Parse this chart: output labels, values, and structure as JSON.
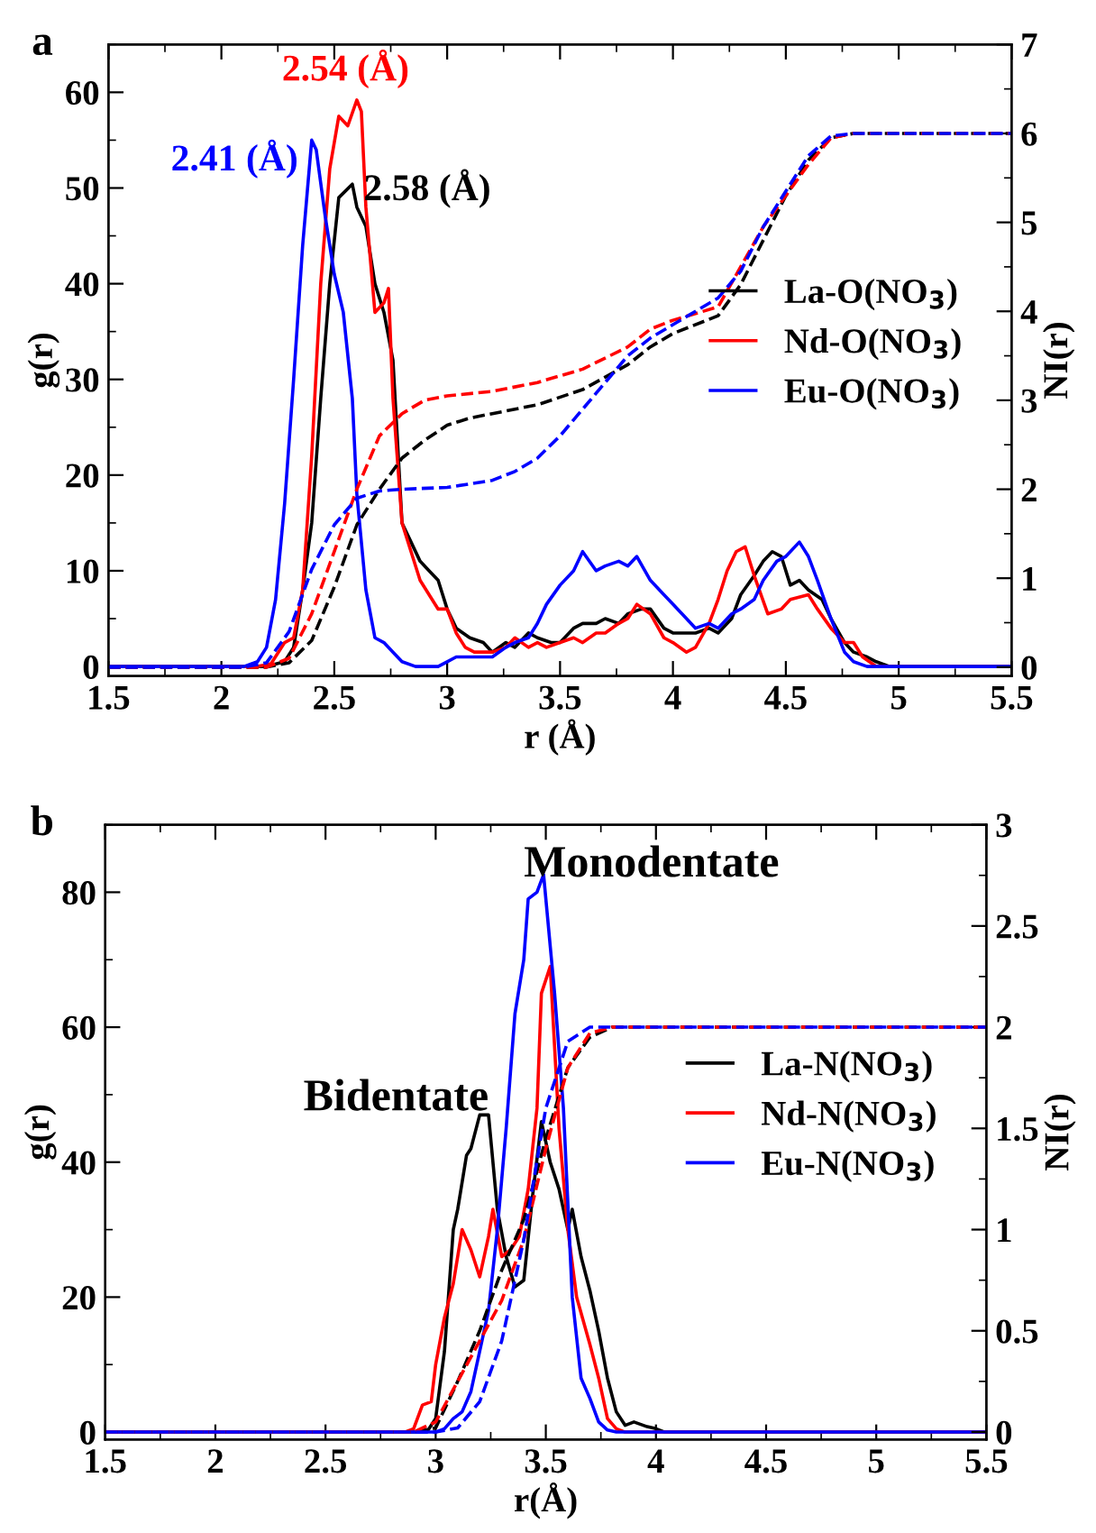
{
  "chart_data": [
    {
      "type": "line",
      "title": "a",
      "xlabel": "r (Å)",
      "ylabel": "g(r)",
      "y2label": "NI(r)",
      "legend": "right",
      "xlim": [
        1.5,
        5.5
      ],
      "xticks": [
        1.5,
        2,
        2.5,
        3,
        3.5,
        4,
        4.5,
        5,
        5.5
      ],
      "ylim": [
        -1,
        65
      ],
      "yticks": [
        0,
        10,
        20,
        30,
        40,
        50,
        60
      ],
      "y2lim": [
        -0.1,
        7
      ],
      "y2ticks": [
        0,
        1,
        2,
        3,
        4,
        5,
        6,
        7
      ],
      "annotations": [
        {
          "text": "2.58 (Å)",
          "x": 2.58,
          "y": 50.4
        },
        {
          "text": "2.54 (Å)",
          "x": 2.6,
          "y": 59.2
        },
        {
          "text": "2.41 (Å)",
          "x": 2.4,
          "y": 55
        }
      ],
      "series": [
        {
          "name": "La-O(NO$_{3}$)",
          "color": "#000000",
          "x": [
            1.5,
            2.2,
            2.28,
            2.32,
            2.36,
            2.4,
            2.44,
            2.48,
            2.52,
            2.58,
            2.6,
            2.64,
            2.68,
            2.72,
            2.76,
            2.8,
            2.84,
            2.88,
            2.92,
            2.96,
            3.0,
            3.04,
            3.1,
            3.16,
            3.2,
            3.26,
            3.3,
            3.36,
            3.4,
            3.46,
            3.5,
            3.56,
            3.6,
            3.66,
            3.7,
            3.76,
            3.8,
            3.86,
            3.9,
            3.96,
            4.0,
            4.06,
            4.1,
            4.16,
            4.2,
            4.26,
            4.3,
            4.36,
            4.4,
            4.44,
            4.48,
            4.52,
            4.56,
            4.6,
            4.66,
            4.7,
            4.76,
            4.8,
            4.86,
            4.9,
            4.96,
            5.5
          ],
          "values": [
            0,
            0,
            0.5,
            2,
            8,
            15,
            28,
            40,
            49,
            50.4,
            48,
            46,
            40,
            37,
            32,
            15,
            13,
            11,
            10,
            9,
            6,
            4,
            3,
            2.5,
            1.5,
            2.5,
            2,
            3.5,
            3,
            2.5,
            2.5,
            4,
            4.5,
            4.5,
            5,
            4.5,
            5.5,
            6,
            6,
            4,
            3.5,
            3.5,
            3.5,
            4,
            3.5,
            5,
            7.5,
            9.5,
            11,
            12,
            11.5,
            8.5,
            9,
            8,
            7,
            5,
            2.5,
            1.5,
            1,
            0.5,
            0,
            0
          ]
        },
        {
          "name": "Nd-O(NO$_{3}$)",
          "color": "#ff0000",
          "x": [
            1.5,
            2.16,
            2.22,
            2.28,
            2.32,
            2.36,
            2.4,
            2.44,
            2.48,
            2.52,
            2.56,
            2.6,
            2.62,
            2.64,
            2.68,
            2.72,
            2.74,
            2.76,
            2.8,
            2.84,
            2.88,
            2.92,
            2.96,
            3.0,
            3.04,
            3.08,
            3.12,
            3.2,
            3.26,
            3.3,
            3.36,
            3.4,
            3.44,
            3.5,
            3.56,
            3.6,
            3.66,
            3.7,
            3.76,
            3.8,
            3.84,
            3.9,
            3.96,
            4.0,
            4.06,
            4.1,
            4.16,
            4.2,
            4.24,
            4.28,
            4.32,
            4.36,
            4.42,
            4.48,
            4.52,
            4.6,
            4.64,
            4.7,
            4.76,
            4.8,
            4.84,
            4.9,
            5.5
          ],
          "values": [
            0,
            0,
            0.3,
            2.5,
            3,
            8,
            22,
            40,
            52,
            57.5,
            56.5,
            59.2,
            58,
            48,
            37,
            38,
            39.5,
            28,
            15,
            12,
            9,
            7.5,
            6,
            6,
            3.5,
            2,
            1.5,
            1.5,
            2,
            3,
            2,
            2.5,
            2,
            2.5,
            3,
            2.5,
            3.5,
            3.5,
            4.5,
            5,
            6.5,
            5.5,
            3,
            2.5,
            1.5,
            2,
            4.5,
            7,
            10,
            12,
            12.5,
            9.5,
            5.5,
            6,
            7,
            7.5,
            6,
            4,
            2.5,
            2.5,
            1,
            0,
            0
          ]
        },
        {
          "name": "Eu-O(NO$_{3}$)",
          "color": "#0000ff",
          "x": [
            1.5,
            2.1,
            2.16,
            2.2,
            2.24,
            2.28,
            2.32,
            2.36,
            2.4,
            2.42,
            2.46,
            2.5,
            2.54,
            2.58,
            2.6,
            2.64,
            2.68,
            2.72,
            2.76,
            2.8,
            2.86,
            2.96,
            3.0,
            3.04,
            3.1,
            3.2,
            3.26,
            3.3,
            3.36,
            3.4,
            3.44,
            3.5,
            3.56,
            3.6,
            3.66,
            3.7,
            3.76,
            3.8,
            3.84,
            3.9,
            3.96,
            4.0,
            4.06,
            4.1,
            4.16,
            4.2,
            4.26,
            4.3,
            4.36,
            4.4,
            4.46,
            4.5,
            4.56,
            4.6,
            4.64,
            4.7,
            4.76,
            4.8,
            4.86,
            5.5
          ],
          "values": [
            0,
            0,
            0.5,
            2,
            7,
            17,
            30,
            44,
            55,
            54,
            47,
            41,
            37,
            28,
            18,
            8,
            3,
            2.5,
            1.5,
            0.5,
            0,
            0,
            0.5,
            1,
            1,
            1,
            2,
            2.5,
            3,
            4.5,
            6.5,
            8.5,
            10,
            12,
            10,
            10.5,
            11,
            10.5,
            11.5,
            9,
            7.5,
            6.5,
            5,
            4,
            4.5,
            4,
            5.5,
            6,
            7,
            9,
            11,
            11.5,
            13,
            11.5,
            9,
            5,
            1.5,
            0.5,
            0,
            0
          ]
        },
        {
          "color": "#000000",
          "axis": "y2",
          "line_style": "dashed",
          "x": [
            1.5,
            2.2,
            2.3,
            2.4,
            2.5,
            2.6,
            2.7,
            2.8,
            2.9,
            3.0,
            3.1,
            3.2,
            3.4,
            3.6,
            3.8,
            3.9,
            4.0,
            4.2,
            4.3,
            4.4,
            4.5,
            4.6,
            4.7,
            4.8,
            5.5
          ],
          "values": [
            0,
            0,
            0.05,
            0.3,
            0.9,
            1.6,
            2.0,
            2.35,
            2.55,
            2.72,
            2.8,
            2.85,
            2.95,
            3.12,
            3.4,
            3.6,
            3.75,
            3.95,
            4.3,
            4.8,
            5.3,
            5.7,
            5.95,
            6.0,
            6.0
          ]
        },
        {
          "color": "#ff0000",
          "axis": "y2",
          "line_style": "dashed",
          "x": [
            1.5,
            2.2,
            2.3,
            2.4,
            2.5,
            2.6,
            2.7,
            2.8,
            2.9,
            3.0,
            3.2,
            3.4,
            3.6,
            3.8,
            3.9,
            4.0,
            4.2,
            4.3,
            4.4,
            4.5,
            4.6,
            4.7,
            4.8,
            5.5
          ],
          "values": [
            0,
            0,
            0.1,
            0.6,
            1.3,
            2.0,
            2.6,
            2.85,
            3.0,
            3.05,
            3.1,
            3.2,
            3.35,
            3.6,
            3.8,
            3.9,
            4.05,
            4.5,
            4.95,
            5.3,
            5.65,
            5.95,
            6.0,
            6.0
          ]
        },
        {
          "color": "#0000ff",
          "axis": "y2",
          "line_style": "dashed",
          "x": [
            1.5,
            2.1,
            2.2,
            2.3,
            2.4,
            2.5,
            2.6,
            2.7,
            2.8,
            3.0,
            3.2,
            3.3,
            3.4,
            3.5,
            3.6,
            3.7,
            3.8,
            3.9,
            4.0,
            4.2,
            4.3,
            4.4,
            4.5,
            4.6,
            4.7,
            4.8,
            5.5
          ],
          "values": [
            0,
            0,
            0.05,
            0.4,
            1.1,
            1.6,
            1.9,
            1.98,
            2.0,
            2.02,
            2.1,
            2.2,
            2.35,
            2.6,
            2.9,
            3.2,
            3.5,
            3.7,
            3.85,
            4.15,
            4.45,
            4.95,
            5.35,
            5.75,
            5.97,
            6.0,
            6.0
          ]
        }
      ]
    },
    {
      "type": "line",
      "title": "b",
      "xlabel": "r(Å)",
      "ylabel": "g(r)",
      "y2label": "NI(r)",
      "legend": "right",
      "xlim": [
        1.5,
        5.5
      ],
      "xticks": [
        1.5,
        2,
        2.5,
        3,
        3.5,
        4,
        4.5,
        5,
        5.5
      ],
      "ylim": [
        -1.1,
        90
      ],
      "yticks": [
        0,
        20,
        40,
        60,
        80
      ],
      "y2lim": [
        -0.037,
        3
      ],
      "y2ticks": [
        0,
        0.5,
        1,
        1.5,
        2,
        2.5,
        3
      ],
      "annotations": [
        "Bidentate",
        "Monodentate"
      ],
      "series": [
        {
          "name": "La-N(NO$_{3}$)",
          "color": "#000000",
          "x": [
            1.5,
            2.96,
            3.0,
            3.04,
            3.08,
            3.1,
            3.14,
            3.16,
            3.2,
            3.24,
            3.28,
            3.32,
            3.36,
            3.4,
            3.44,
            3.48,
            3.52,
            3.56,
            3.6,
            3.62,
            3.66,
            3.7,
            3.74,
            3.78,
            3.82,
            3.86,
            3.9,
            3.96,
            4.0,
            4.04,
            5.5
          ],
          "values": [
            0,
            0,
            2,
            12,
            30,
            33,
            41,
            42,
            47,
            47,
            33,
            26,
            21.5,
            22.5,
            35,
            46,
            40,
            36,
            30,
            33,
            26,
            21,
            15,
            8,
            3,
            1,
            1.5,
            0.8,
            0.5,
            0,
            0
          ]
        },
        {
          "name": "Nd-N(NO$_{3}$)",
          "color": "#ff0000",
          "x": [
            1.5,
            2.86,
            2.9,
            2.94,
            2.98,
            3.0,
            3.04,
            3.08,
            3.12,
            3.16,
            3.2,
            3.24,
            3.26,
            3.3,
            3.34,
            3.38,
            3.42,
            3.46,
            3.48,
            3.52,
            3.56,
            3.6,
            3.64,
            3.7,
            3.74,
            3.78,
            3.82,
            3.86,
            5.5
          ],
          "values": [
            0,
            0,
            0.5,
            4,
            4.5,
            10,
            17,
            22,
            30,
            27,
            23,
            29,
            33,
            26,
            27,
            29,
            36,
            48,
            65,
            69,
            45,
            30,
            20,
            13,
            8,
            2,
            0.5,
            0,
            0
          ]
        },
        {
          "name": "Eu-N(NO$_{3}$)",
          "color": "#0000ff",
          "x": [
            1.5,
            3.0,
            3.04,
            3.08,
            3.12,
            3.16,
            3.2,
            3.24,
            3.28,
            3.32,
            3.36,
            3.4,
            3.42,
            3.46,
            3.49,
            3.54,
            3.58,
            3.62,
            3.66,
            3.7,
            3.74,
            3.78,
            3.82,
            5.5
          ],
          "values": [
            0,
            0,
            0.5,
            2,
            3,
            6,
            12,
            18,
            30,
            45,
            62,
            70,
            79,
            80,
            82.6,
            65,
            48,
            20,
            8,
            5,
            1.5,
            0.3,
            0,
            0
          ]
        },
        {
          "color": "#000000",
          "axis": "y2",
          "line_style": "dashed",
          "x": [
            1.5,
            2.9,
            3.0,
            3.1,
            3.2,
            3.3,
            3.4,
            3.5,
            3.6,
            3.7,
            3.8,
            5.5
          ],
          "values": [
            0,
            0,
            0.02,
            0.25,
            0.5,
            0.8,
            1.05,
            1.45,
            1.8,
            1.95,
            2.0,
            2.0
          ]
        },
        {
          "color": "#ff0000",
          "axis": "y2",
          "line_style": "dashed",
          "x": [
            1.5,
            2.9,
            3.0,
            3.1,
            3.2,
            3.3,
            3.4,
            3.5,
            3.6,
            3.7,
            3.8,
            5.5
          ],
          "values": [
            0,
            0,
            0.05,
            0.25,
            0.45,
            0.65,
            0.95,
            1.4,
            1.8,
            1.97,
            2.0,
            2.0
          ]
        },
        {
          "color": "#0000ff",
          "axis": "y2",
          "line_style": "dashed",
          "x": [
            1.5,
            3.0,
            3.1,
            3.2,
            3.3,
            3.4,
            3.5,
            3.6,
            3.7,
            5.5
          ],
          "values": [
            0,
            0,
            0.02,
            0.15,
            0.45,
            0.95,
            1.6,
            1.93,
            2.0,
            2.0
          ]
        }
      ]
    }
  ]
}
